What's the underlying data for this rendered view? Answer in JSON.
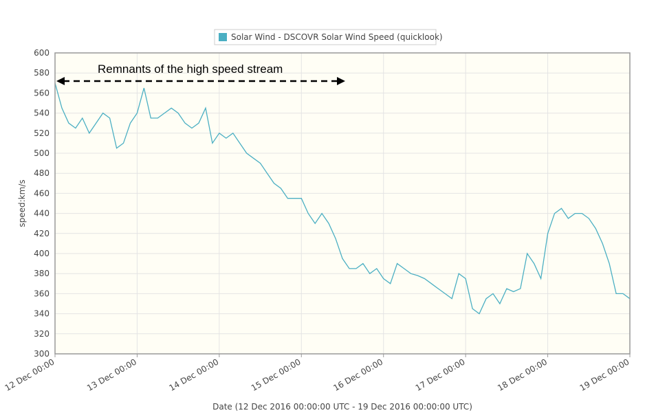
{
  "chart_data": {
    "type": "line",
    "legend": "Solar Wind - DSCOVR Solar Wind Speed (quicklook)",
    "annotation": "Remnants of the high speed stream",
    "ylabel": "speed:km/s",
    "xlabel": "Date (12 Dec 2016 00:00:00 UTC - 19 Dec 2016 00:00:00 UTC)",
    "ylim": [
      300,
      600
    ],
    "yticks": [
      300,
      320,
      340,
      360,
      380,
      400,
      420,
      440,
      460,
      480,
      500,
      520,
      540,
      560,
      580,
      600
    ],
    "xlim": [
      "12 Dec 00:00",
      "19 Dec 00:00"
    ],
    "xticks": [
      "12 Dec 00:00",
      "13 Dec 00:00",
      "14 Dec 00:00",
      "15 Dec 00:00",
      "16 Dec 00:00",
      "17 Dec 00:00",
      "18 Dec 00:00",
      "19 Dec 00:00"
    ],
    "grid": true,
    "series": [
      {
        "name": "Solar Wind - DSCOVR Solar Wind Speed (quicklook)",
        "color": "#4bafc3",
        "x": [
          "12 Dec 00:00",
          "12 Dec 02:00",
          "12 Dec 04:00",
          "12 Dec 06:00",
          "12 Dec 08:00",
          "12 Dec 10:00",
          "12 Dec 12:00",
          "12 Dec 14:00",
          "12 Dec 16:00",
          "12 Dec 18:00",
          "12 Dec 20:00",
          "12 Dec 22:00",
          "13 Dec 00:00",
          "13 Dec 02:00",
          "13 Dec 04:00",
          "13 Dec 06:00",
          "13 Dec 08:00",
          "13 Dec 10:00",
          "13 Dec 12:00",
          "13 Dec 14:00",
          "13 Dec 16:00",
          "13 Dec 18:00",
          "13 Dec 20:00",
          "13 Dec 22:00",
          "14 Dec 00:00",
          "14 Dec 02:00",
          "14 Dec 04:00",
          "14 Dec 06:00",
          "14 Dec 08:00",
          "14 Dec 10:00",
          "14 Dec 12:00",
          "14 Dec 14:00",
          "14 Dec 16:00",
          "14 Dec 18:00",
          "14 Dec 20:00",
          "14 Dec 22:00",
          "15 Dec 00:00",
          "15 Dec 02:00",
          "15 Dec 04:00",
          "15 Dec 06:00",
          "15 Dec 08:00",
          "15 Dec 10:00",
          "15 Dec 12:00",
          "15 Dec 14:00",
          "15 Dec 16:00",
          "15 Dec 18:00",
          "15 Dec 20:00",
          "15 Dec 22:00",
          "16 Dec 00:00",
          "16 Dec 02:00",
          "16 Dec 04:00",
          "16 Dec 06:00",
          "16 Dec 08:00",
          "16 Dec 10:00",
          "16 Dec 12:00",
          "16 Dec 14:00",
          "16 Dec 16:00",
          "16 Dec 18:00",
          "16 Dec 20:00",
          "16 Dec 22:00",
          "17 Dec 00:00",
          "17 Dec 02:00",
          "17 Dec 04:00",
          "17 Dec 06:00",
          "17 Dec 08:00",
          "17 Dec 10:00",
          "17 Dec 12:00",
          "17 Dec 14:00",
          "17 Dec 16:00",
          "17 Dec 18:00",
          "17 Dec 20:00",
          "17 Dec 22:00",
          "18 Dec 00:00",
          "18 Dec 02:00",
          "18 Dec 04:00",
          "18 Dec 06:00",
          "18 Dec 08:00",
          "18 Dec 10:00",
          "18 Dec 12:00",
          "18 Dec 14:00",
          "18 Dec 16:00",
          "18 Dec 18:00",
          "18 Dec 20:00",
          "18 Dec 22:00",
          "19 Dec 00:00"
        ],
        "values": [
          570,
          545,
          530,
          525,
          535,
          520,
          530,
          540,
          535,
          505,
          510,
          530,
          540,
          565,
          535,
          535,
          540,
          545,
          540,
          530,
          525,
          530,
          545,
          510,
          520,
          515,
          520,
          510,
          500,
          495,
          490,
          480,
          470,
          465,
          455,
          455,
          455,
          440,
          430,
          440,
          430,
          415,
          395,
          385,
          385,
          390,
          380,
          385,
          375,
          370,
          390,
          385,
          380,
          378,
          375,
          370,
          365,
          360,
          355,
          380,
          375,
          345,
          340,
          355,
          360,
          350,
          365,
          362,
          365,
          400,
          390,
          375,
          420,
          440,
          445,
          435,
          440,
          440,
          435,
          425,
          410,
          390,
          360,
          360,
          355
        ]
      }
    ]
  }
}
